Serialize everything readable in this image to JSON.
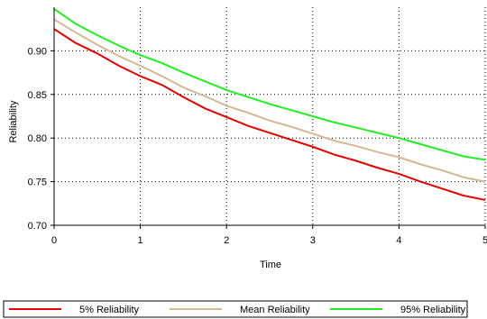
{
  "chart_data": {
    "type": "line",
    "title": "",
    "xlabel": "Time",
    "ylabel": "Reliability",
    "xlim": [
      0,
      5
    ],
    "ylim": [
      0.7,
      0.95
    ],
    "x_ticks": [
      0,
      1,
      2,
      3,
      4,
      5
    ],
    "x_tick_labels": [
      "0",
      "1",
      "2",
      "3",
      "4",
      "5"
    ],
    "y_ticks": [
      0.7,
      0.75,
      0.8,
      0.85,
      0.9
    ],
    "y_tick_labels": [
      "0.70",
      "0.75",
      "0.80",
      "0.85",
      "0.90"
    ],
    "grid": true,
    "legend_position": "bottom",
    "x": [
      0,
      0.25,
      0.5,
      0.75,
      1.0,
      1.25,
      1.5,
      1.75,
      2.0,
      2.25,
      2.5,
      2.75,
      3.0,
      3.25,
      3.5,
      3.75,
      4.0,
      4.25,
      4.5,
      4.75,
      5.0
    ],
    "series": [
      {
        "name": "5% Reliability",
        "color": "#e00000",
        "values": [
          0.925,
          0.909,
          0.897,
          0.883,
          0.871,
          0.861,
          0.847,
          0.834,
          0.824,
          0.814,
          0.806,
          0.798,
          0.79,
          0.781,
          0.774,
          0.766,
          0.759,
          0.75,
          0.742,
          0.734,
          0.729
        ]
      },
      {
        "name": "Mean Reliability",
        "color": "#d4b896",
        "values": [
          0.936,
          0.921,
          0.907,
          0.894,
          0.883,
          0.871,
          0.858,
          0.848,
          0.837,
          0.829,
          0.82,
          0.813,
          0.805,
          0.797,
          0.791,
          0.784,
          0.778,
          0.77,
          0.763,
          0.755,
          0.75
        ]
      },
      {
        "name": "95% Reliability",
        "color": "#22ee22",
        "values": [
          0.948,
          0.931,
          0.918,
          0.906,
          0.895,
          0.886,
          0.875,
          0.865,
          0.855,
          0.847,
          0.839,
          0.832,
          0.825,
          0.818,
          0.812,
          0.806,
          0.8,
          0.793,
          0.786,
          0.779,
          0.775
        ]
      }
    ]
  }
}
